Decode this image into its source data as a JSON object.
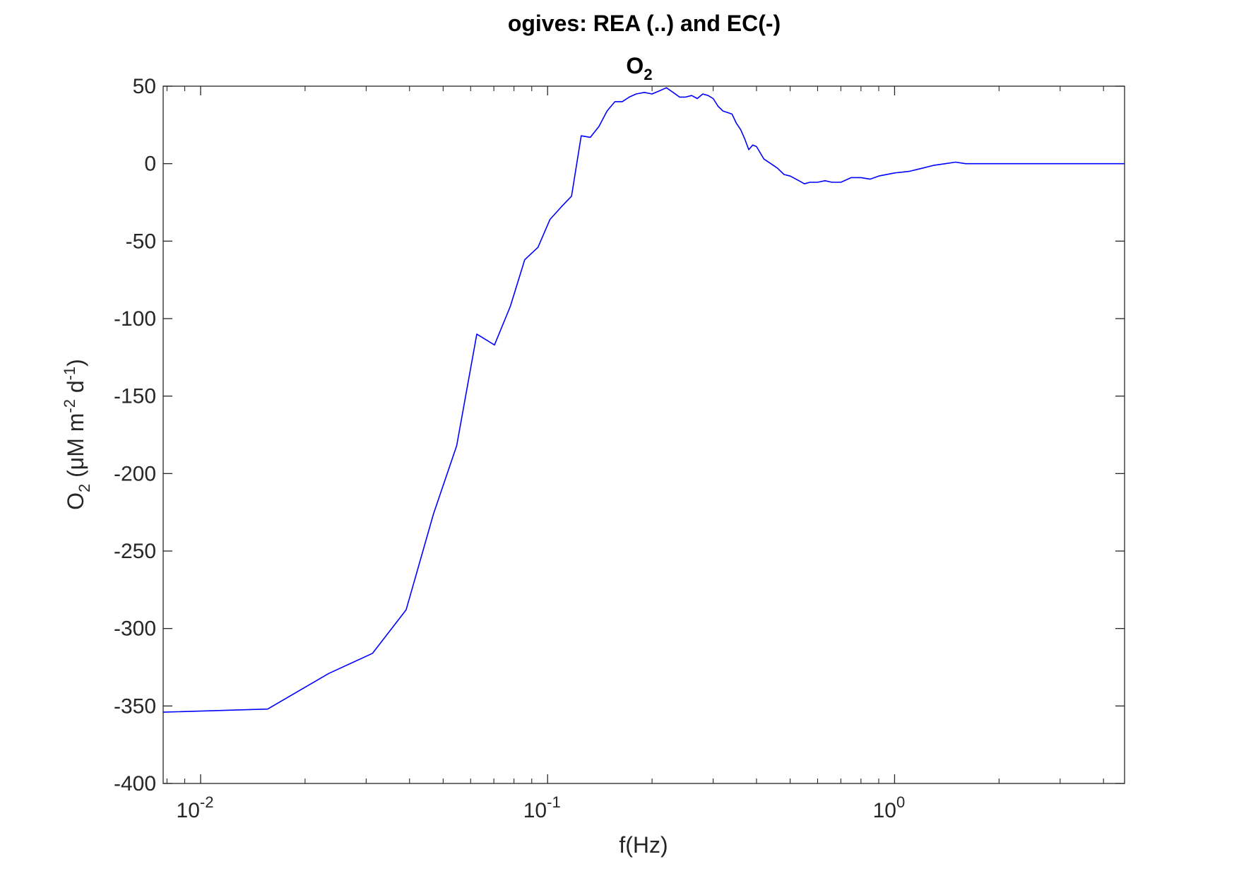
{
  "chart_data": {
    "type": "line",
    "title": "ogives: REA (..) and EC(-)",
    "subtitle": {
      "base": "O",
      "sub": "2"
    },
    "xlabel": "f(Hz)",
    "ylabel": {
      "base": "O",
      "sub": "2",
      "unit_open": " (μM m",
      "exp1": "-2",
      "mid": " d",
      "exp2": "-1",
      "unit_close": ")"
    },
    "x_scale": "log",
    "xlim": [
      0.0078,
      4.6
    ],
    "ylim": [
      -400,
      50
    ],
    "y_ticks": [
      50,
      0,
      -50,
      -100,
      -150,
      -200,
      -250,
      -300,
      -350,
      -400
    ],
    "x_ticks": [
      {
        "value": 0.01,
        "base": "10",
        "exp": "-2"
      },
      {
        "value": 0.1,
        "base": "10",
        "exp": "-1"
      },
      {
        "value": 1,
        "base": "10",
        "exp": "0"
      }
    ],
    "grid": false,
    "series": [
      {
        "color": "#0000ff",
        "x": [
          0.0078,
          0.0156,
          0.0234,
          0.0313,
          0.0391,
          0.0469,
          0.0547,
          0.0625,
          0.0703,
          0.0781,
          0.0859,
          0.0938,
          0.1016,
          0.1094,
          0.1172,
          0.125,
          0.1328,
          0.1406,
          0.1484,
          0.1563,
          0.1641,
          0.1719,
          0.18,
          0.19,
          0.2,
          0.21,
          0.22,
          0.23,
          0.24,
          0.25,
          0.26,
          0.27,
          0.28,
          0.29,
          0.3,
          0.31,
          0.32,
          0.33,
          0.34,
          0.35,
          0.36,
          0.37,
          0.38,
          0.39,
          0.4,
          0.42,
          0.44,
          0.46,
          0.48,
          0.5,
          0.53,
          0.55,
          0.57,
          0.6,
          0.63,
          0.66,
          0.7,
          0.75,
          0.8,
          0.85,
          0.9,
          1.0,
          1.1,
          1.2,
          1.3,
          1.4,
          1.5,
          1.6,
          1.8,
          2.0,
          2.5,
          3.0,
          3.5,
          4.0,
          4.6
        ],
        "y": [
          -354,
          -352,
          -329,
          -316,
          -288,
          -226,
          -182,
          -110,
          -117,
          -92,
          -62,
          -54,
          -36,
          -28,
          -21,
          18,
          17,
          24,
          34,
          40,
          40,
          43,
          45,
          46,
          45,
          47,
          49,
          46,
          43,
          43,
          44,
          42,
          45,
          44,
          42,
          37,
          34,
          33,
          32,
          26,
          22,
          16,
          9,
          12,
          11,
          3,
          0,
          -3,
          -7,
          -8,
          -11,
          -13,
          -12,
          -12,
          -11,
          -12,
          -12,
          -9,
          -9,
          -10,
          -8,
          -6,
          -5,
          -3,
          -1,
          0,
          1,
          0,
          0,
          0,
          0,
          0,
          0,
          0,
          0
        ]
      }
    ]
  }
}
